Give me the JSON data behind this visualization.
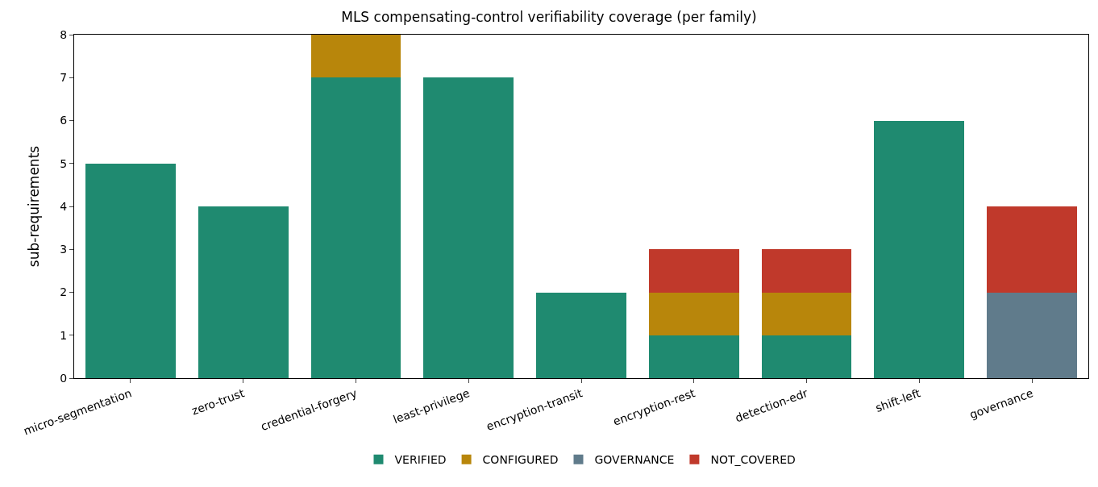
{
  "chart_data": {
    "type": "bar",
    "title": "MLS compensating-control verifiability coverage (per family)",
    "ylabel": "sub-requirements",
    "categories": [
      "micro-segmentation",
      "zero-trust",
      "credential-forgery",
      "least-privilege",
      "encryption-transit",
      "encryption-rest",
      "detection-edr",
      "shift-left",
      "governance"
    ],
    "series": [
      {
        "name": "VERIFIED",
        "color": "#1f8a70",
        "values": [
          5,
          4,
          7,
          7,
          2,
          1,
          1,
          6,
          0
        ]
      },
      {
        "name": "CONFIGURED",
        "color": "#b8860b",
        "values": [
          0,
          0,
          1,
          0,
          0,
          1,
          1,
          0,
          0
        ]
      },
      {
        "name": "GOVERNANCE",
        "color": "#607b8b",
        "values": [
          0,
          0,
          0,
          0,
          0,
          0,
          0,
          0,
          2
        ]
      },
      {
        "name": "NOT_COVERED",
        "color": "#c0392b",
        "values": [
          0,
          0,
          0,
          0,
          0,
          1,
          1,
          0,
          2
        ]
      }
    ],
    "stacked": true,
    "ylim": [
      0,
      8
    ],
    "yticks": [
      0,
      1,
      2,
      3,
      4,
      5,
      6,
      7,
      8
    ],
    "grid": false,
    "legend": "bottom"
  }
}
